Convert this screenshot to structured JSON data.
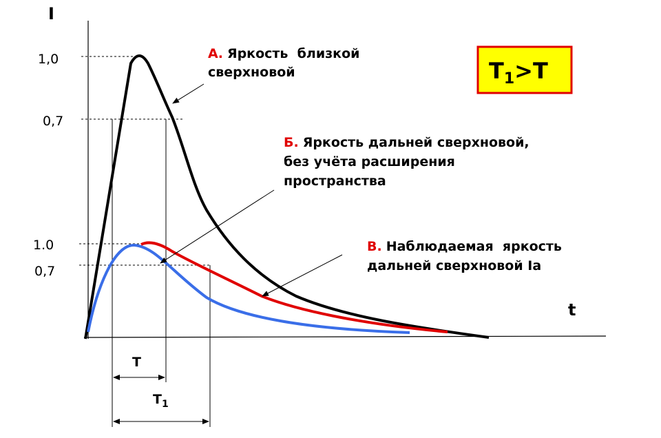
{
  "axes": {
    "y_label": "I",
    "x_label": "t"
  },
  "y_levels": [
    "1,0",
    "0,7",
    "1.0",
    "0,7"
  ],
  "annotations": [
    {
      "marker": "А.",
      "lines": [
        "Яркость  близкой",
        "сверхновой"
      ]
    },
    {
      "marker": "Б.",
      "lines": [
        "Яркость дальней сверхновой,",
        "без учёта расширения",
        "пространства"
      ]
    },
    {
      "marker": "В.",
      "lines": [
        "Наблюдаемая  яркость",
        "дальней сверхновой Ia"
      ]
    }
  ],
  "intervals": [
    {
      "label": "T"
    },
    {
      "label": "T",
      "subscript": "1"
    }
  ],
  "condition": {
    "left": "T",
    "subscript": "1",
    "right": ">T"
  }
}
